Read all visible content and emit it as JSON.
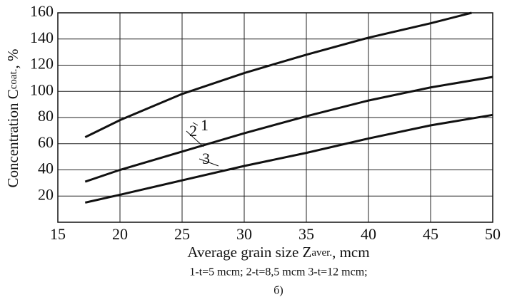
{
  "chart_data": {
    "type": "line",
    "xlabel": {
      "main": "Average grain size Z",
      "sub": "aver.",
      "unit": ", mcm"
    },
    "ylabel": {
      "main": "Concentration  C",
      "sub": "coat.",
      "unit": ", %"
    },
    "caption": "1-t=5 mcm; 2-t=8,5 mcm 3-t=12 mcm;",
    "note": "б)",
    "xlim": [
      15,
      50
    ],
    "xticks": [
      15,
      20,
      25,
      30,
      35,
      40,
      45,
      50
    ],
    "ylim": [
      0,
      160
    ],
    "yticks": [
      20,
      40,
      60,
      80,
      100,
      120,
      140,
      160
    ],
    "grid": true,
    "series": [
      {
        "name": "1",
        "color": "#111111",
        "x": [
          17.2,
          20,
          25,
          30,
          35,
          40,
          45,
          48.3
        ],
        "values": [
          65,
          78,
          98,
          114,
          128,
          141,
          152,
          160
        ]
      },
      {
        "name": "2",
        "color": "#111111",
        "x": [
          17.2,
          20,
          25,
          30,
          35,
          40,
          45,
          50
        ],
        "values": [
          31,
          40,
          54,
          68,
          81,
          93,
          103,
          111
        ]
      },
      {
        "name": "3",
        "color": "#111111",
        "x": [
          17.2,
          20,
          25,
          30,
          35,
          40,
          45,
          50
        ],
        "values": [
          15,
          21,
          32,
          43,
          53,
          64,
          74,
          82
        ]
      }
    ]
  }
}
